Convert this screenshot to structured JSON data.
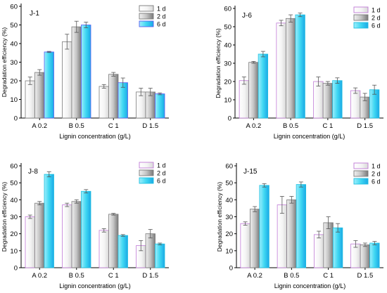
{
  "chart_data": [
    {
      "type": "bar",
      "panel_label": "J-1",
      "categories": [
        "A 0.2",
        "B 0.5",
        "C 1",
        "D 1.5"
      ],
      "xlabel": "Lignin concentration (g/L)",
      "ylabel": "Degradation efficiency (%)",
      "ylim": [
        0,
        60
      ],
      "yticks": [
        "0",
        "10",
        "20",
        "30",
        "40",
        "50",
        "60"
      ],
      "grid": false,
      "legend_position": "top-right",
      "series": [
        {
          "name": "1 d",
          "color": "#ffffff",
          "edge": "#7a7a7a",
          "values": [
            20,
            41,
            17,
            14
          ],
          "errors": [
            2.0,
            4.0,
            1.0,
            2.0
          ]
        },
        {
          "name": "2 d",
          "color": "#8f8f8f",
          "edge": "#7a7a7a",
          "values": [
            24.5,
            49,
            23.5,
            14
          ],
          "errors": [
            1.5,
            3.0,
            1.0,
            2.0
          ]
        },
        {
          "name": "6 d",
          "color": "#3ac8f5",
          "edge": "#5a5ef0",
          "values": [
            35.5,
            50,
            19,
            13
          ],
          "errors": [
            0.3,
            1.5,
            2.5,
            0.5
          ]
        }
      ]
    },
    {
      "type": "bar",
      "panel_label": "J-6",
      "categories": [
        "A 0.2",
        "B 0.5",
        "C 1",
        "D 1.5"
      ],
      "xlabel": "Lignin concentration (g/L)",
      "ylabel": "Degradation efficiency (%)",
      "ylim": [
        0,
        60
      ],
      "yticks": [
        "0",
        "10",
        "20",
        "30",
        "40",
        "50",
        "60"
      ],
      "grid": false,
      "legend_position": "top-right",
      "series": [
        {
          "name": "1 d",
          "color": "#ffffff",
          "edge": "#c07ad6",
          "values": [
            20.5,
            52,
            20,
            15
          ],
          "errors": [
            2.0,
            1.5,
            2.5,
            1.5
          ]
        },
        {
          "name": "2 d",
          "color": "#8f8f8f",
          "edge": "#7a7a7a",
          "values": [
            30.5,
            54.5,
            19,
            11.5
          ],
          "errors": [
            0.5,
            2.0,
            1.0,
            2.0
          ]
        },
        {
          "name": "6 d",
          "color": "#2fd8e8",
          "edge": "#20c0e0",
          "values": [
            35,
            56.5,
            20.5,
            15.5
          ],
          "errors": [
            1.5,
            1.0,
            1.5,
            2.5
          ]
        }
      ]
    },
    {
      "type": "bar",
      "panel_label": "J-8",
      "categories": [
        "A 0.2",
        "B 0.5",
        "C 1",
        "D 1.5"
      ],
      "xlabel": "Lignin concentration (g/L)",
      "ylabel": "Degradation efficiency (%)",
      "ylim": [
        0,
        60
      ],
      "yticks": [
        "0",
        "10",
        "20",
        "30",
        "40",
        "50",
        "60"
      ],
      "grid": false,
      "legend_position": "top-right",
      "series": [
        {
          "name": "1 d",
          "color": "#ffffff",
          "edge": "#c07ad6",
          "values": [
            30,
            37,
            22,
            13
          ],
          "errors": [
            1.0,
            1.0,
            1.0,
            3.0
          ]
        },
        {
          "name": "2 d",
          "color": "#8f8f8f",
          "edge": "#7a7a7a",
          "values": [
            38,
            39,
            31.5,
            20
          ],
          "errors": [
            1.0,
            1.0,
            0.5,
            2.5
          ]
        },
        {
          "name": "6 d",
          "color": "#2fd8e8",
          "edge": "#20c0e0",
          "values": [
            55,
            45,
            19,
            14
          ],
          "errors": [
            1.5,
            1.0,
            0.5,
            0.5
          ]
        }
      ]
    },
    {
      "type": "bar",
      "panel_label": "J-15",
      "categories": [
        "A 0.2",
        "B 0.5",
        "C 1",
        "D 1.5"
      ],
      "xlabel": "Lignin concentration (g/L)",
      "ylabel": "Degradation efficiency (%)",
      "ylim": [
        0,
        60
      ],
      "yticks": [
        "0",
        "10",
        "20",
        "30",
        "40",
        "50",
        "60"
      ],
      "grid": false,
      "legend_position": "top-right",
      "series": [
        {
          "name": "1 d",
          "color": "#ffffff",
          "edge": "#c07ad6",
          "values": [
            26,
            37,
            19.5,
            14
          ],
          "errors": [
            1.0,
            5.0,
            2.0,
            2.0
          ]
        },
        {
          "name": "2 d",
          "color": "#8f8f8f",
          "edge": "#7a7a7a",
          "values": [
            34.5,
            40,
            26.5,
            13.5
          ],
          "errors": [
            1.5,
            2.0,
            3.5,
            1.0
          ]
        },
        {
          "name": "6 d",
          "color": "#2fd8e8",
          "edge": "#20c0e0",
          "values": [
            48.5,
            49,
            23.5,
            14.5
          ],
          "errors": [
            1.0,
            1.5,
            2.5,
            1.0
          ]
        }
      ]
    }
  ]
}
